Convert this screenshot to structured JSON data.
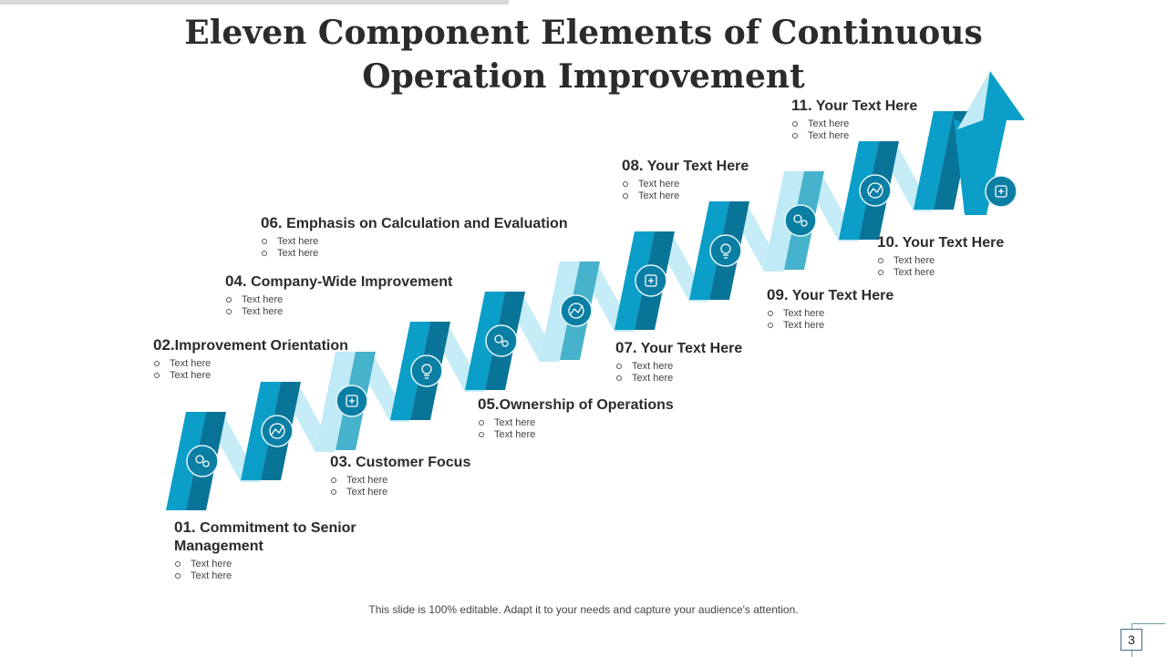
{
  "title": "Eleven Component Elements of Continuous Operation Improvement",
  "footer": "This slide is 100% editable. Adapt it to your needs and capture your audience's attention.",
  "page_number": "3",
  "colors": {
    "light": "#bfeaf6",
    "mid": "#46b2cb",
    "bright": "#0a9ec8",
    "dark": "#087497",
    "icon_bg": "#0b7ea4"
  },
  "steps": [
    {
      "num": "01.",
      "label": "Commitment to Senior Management",
      "bullets": [
        "Text here",
        "Text here"
      ],
      "icon": "handshake-icon"
    },
    {
      "num": "02.",
      "label": "Improvement Orientation",
      "bullets": [
        "Text here",
        "Text here"
      ],
      "icon": "gears-icon"
    },
    {
      "num": "03.",
      "label": "Customer Focus",
      "bullets": [
        "Text here",
        "Text here"
      ],
      "icon": "idea-bulb-icon"
    },
    {
      "num": "04.",
      "label": "Company-Wide Improvement",
      "bullets": [
        "Text here",
        "Text here"
      ],
      "icon": "settings-arrow-icon"
    },
    {
      "num": "05.",
      "label": "Ownership of  Operations",
      "bullets": [
        "Text here",
        "Text here"
      ],
      "icon": "factory-gear-icon"
    },
    {
      "num": "06.",
      "label": "Emphasis on Calculation and Evaluation",
      "bullets": [
        "Text here",
        "Text here"
      ],
      "icon": "calculation-icon"
    },
    {
      "num": "07.",
      "label": "Your Text Here",
      "bullets": [
        "Text here",
        "Text here"
      ],
      "icon": "head-gear-icon"
    },
    {
      "num": "08.",
      "label": "Your Text Here",
      "bullets": [
        "Text here",
        "Text here"
      ],
      "icon": "analytics-icon"
    },
    {
      "num": "09.",
      "label": "Your Text Here",
      "bullets": [
        "Text here",
        "Text here"
      ],
      "icon": "cog-icon"
    },
    {
      "num": "10.",
      "label": "Your Text Here",
      "bullets": [
        "Text here",
        "Text here"
      ],
      "icon": "team-search-icon"
    },
    {
      "num": "11.",
      "label": "Your Text Here",
      "bullets": [
        "Text here",
        "Text here"
      ],
      "icon": "person-idea-icon"
    }
  ]
}
